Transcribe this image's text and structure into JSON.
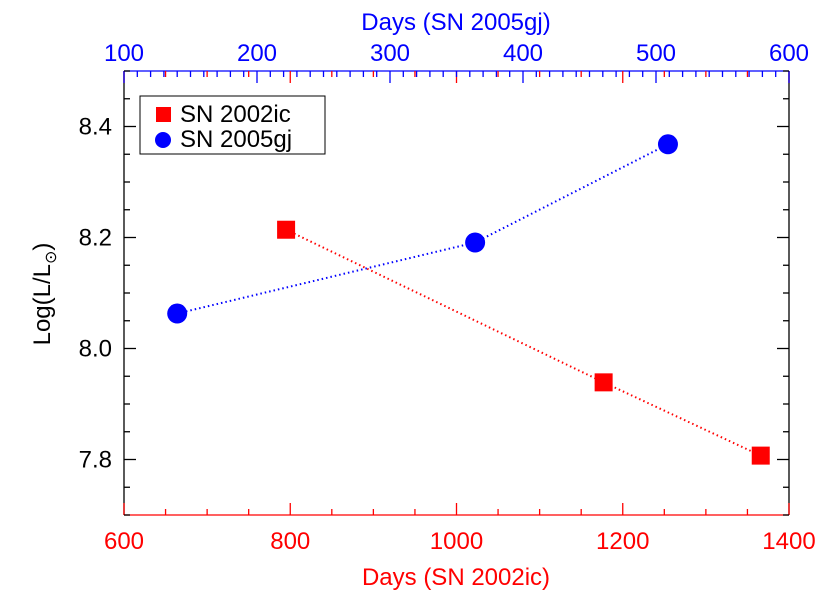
{
  "chart_data": {
    "type": "line",
    "xlabel": "Days (SN 2002ic)",
    "x2label": "Days (SN 2005gj)",
    "ylabel": "Log(L/L",
    "ylabel_subscript": "⊙",
    "ylabel_close": ")",
    "xlim": [
      600,
      1400
    ],
    "x2lim": [
      100,
      600
    ],
    "ylim": [
      7.7,
      8.5
    ],
    "xticks": [
      "600",
      "800",
      "1000",
      "1200",
      "1400"
    ],
    "x2ticks": [
      "100",
      "200",
      "300",
      "400",
      "500",
      "600"
    ],
    "yticks": [
      "7.8",
      "8.0",
      "8.2",
      "8.4"
    ],
    "legend_position": "top-left",
    "grid": false,
    "series": [
      {
        "name": "SN 2002ic",
        "axis": "bottom",
        "marker": "square",
        "color": "#ff0000",
        "line": "dotted",
        "x": [
          795,
          1177,
          1366
        ],
        "y": [
          8.214,
          7.939,
          7.807
        ]
      },
      {
        "name": "SN 2005gj",
        "axis": "top",
        "marker": "circle",
        "color": "#0000ff",
        "line": "dotted",
        "x": [
          140,
          364,
          509
        ],
        "y": [
          8.063,
          8.191,
          8.368
        ]
      }
    ]
  }
}
